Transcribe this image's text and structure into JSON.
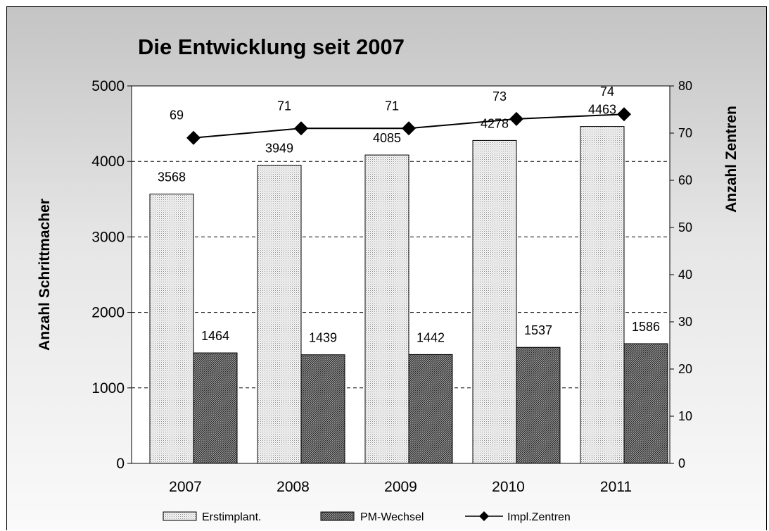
{
  "chart_data": {
    "type": "bar",
    "title": "Die Entwicklung seit 2007",
    "categories": [
      "2007",
      "2008",
      "2009",
      "2010",
      "2011"
    ],
    "ylabel": "Anzahl Schrittmacher",
    "y2label": "Anzahl Zentren",
    "ylim": [
      0,
      5000
    ],
    "yticks": [
      "0",
      "1000",
      "2000",
      "3000",
      "4000",
      "5000"
    ],
    "y2lim": [
      0,
      80
    ],
    "y2ticks": [
      "0",
      "10",
      "20",
      "30",
      "40",
      "50",
      "60",
      "70",
      "80"
    ],
    "grid": "horizontal dashed",
    "legend_position": "bottom",
    "series": [
      {
        "name": "Erstimplant.",
        "type": "bar",
        "axis": "left",
        "values": [
          3568,
          3949,
          4085,
          4278,
          4463
        ],
        "labels": [
          "3568",
          "3949",
          "4085",
          "4278",
          "4463"
        ]
      },
      {
        "name": "PM-Wechsel",
        "type": "bar",
        "axis": "left",
        "values": [
          1464,
          1439,
          1442,
          1537,
          1586
        ],
        "labels": [
          "1464",
          "1439",
          "1442",
          "1537",
          "1586"
        ]
      },
      {
        "name": "Impl.Zentren",
        "type": "line",
        "axis": "right",
        "values": [
          69,
          71,
          71,
          73,
          74
        ],
        "labels": [
          "69",
          "71",
          "71",
          "73",
          "74"
        ]
      }
    ]
  }
}
